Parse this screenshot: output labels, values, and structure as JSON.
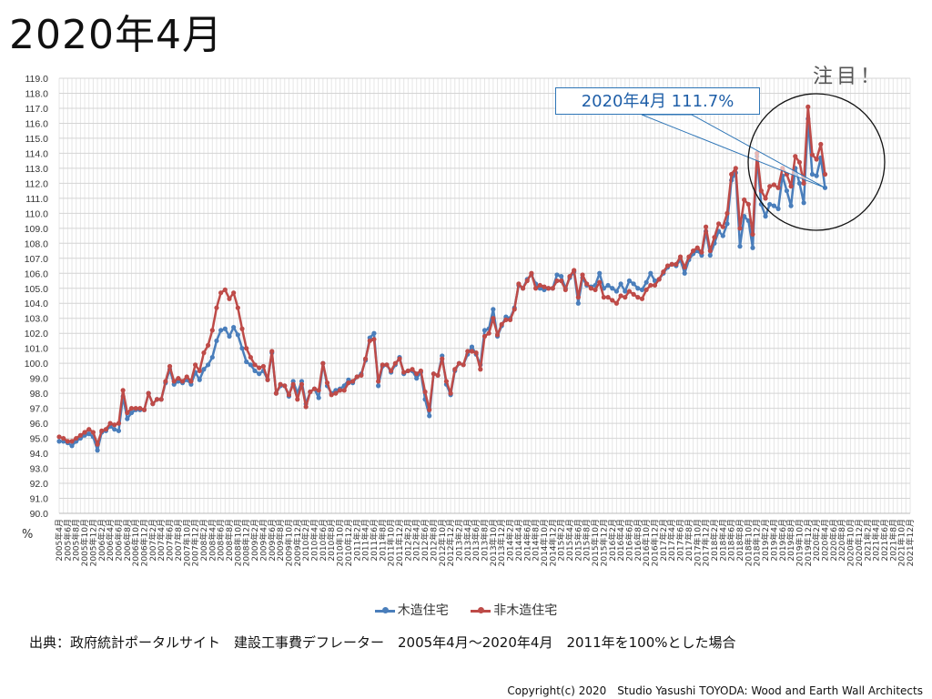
{
  "title": "2020年4月",
  "callout": "2020年4月 111.7%",
  "attention": "注目！",
  "source": "出典：政府統計ポータルサイト　建設工事費デフレーター　2005年4月～2020年4月　2011年を100%とした場合",
  "copyright": "Copyright(c) 2020　Studio Yasushi TOYODA: Wood and Earth Wall Architects",
  "colors": {
    "wood": "#4a7ebb",
    "nonwood": "#be4b48"
  },
  "chart_data": {
    "type": "line",
    "title": "2020年4月",
    "xlabel": "",
    "ylabel": "%",
    "ylim": [
      90.0,
      119.0
    ],
    "ytick_step": 1.0,
    "x_start": "2005年4月",
    "x_end_axis": "2021年12月",
    "x_tick_every_months": 2,
    "grid": true,
    "legend_position": "bottom",
    "series": [
      {
        "name": "木造住宅",
        "color": "#4a7ebb",
        "values": [
          94.8,
          94.8,
          94.7,
          94.5,
          94.8,
          95.0,
          95.2,
          95.3,
          95.1,
          94.2,
          95.4,
          95.5,
          95.8,
          95.6,
          95.5,
          97.8,
          96.3,
          96.7,
          96.9,
          96.9,
          96.9,
          98.0,
          97.3,
          97.6,
          97.6,
          98.7,
          99.6,
          98.6,
          98.8,
          98.7,
          98.9,
          98.6,
          99.4,
          98.9,
          99.6,
          99.9,
          100.4,
          101.5,
          102.2,
          102.3,
          101.8,
          102.4,
          101.9,
          101.0,
          100.1,
          99.9,
          99.5,
          99.3,
          99.5,
          98.9,
          100.7,
          98.0,
          98.5,
          98.5,
          97.8,
          98.8,
          98.0,
          98.8,
          97.3,
          98.1,
          98.3,
          97.7,
          100.0,
          98.5,
          98.0,
          98.2,
          98.3,
          98.5,
          98.9,
          98.7,
          99.1,
          99.3,
          100.2,
          101.7,
          102.0,
          98.5,
          99.8,
          99.9,
          99.4,
          99.9,
          100.4,
          99.3,
          99.5,
          99.5,
          99.0,
          99.4,
          97.6,
          96.5,
          99.3,
          99.2,
          100.5,
          98.6,
          97.9,
          99.5,
          100.0,
          99.9,
          100.6,
          101.1,
          100.6,
          99.9,
          102.2,
          102.3,
          103.6,
          101.8,
          102.5,
          103.1,
          103.0,
          103.7,
          105.2,
          105.0,
          105.6,
          105.9,
          105.3,
          105.0,
          104.9,
          105.0,
          105.0,
          105.9,
          105.8,
          105.0,
          105.7,
          106.1,
          104.0,
          105.7,
          105.2,
          105.1,
          105.2,
          106.0,
          105.0,
          105.2,
          105.0,
          104.8,
          105.3,
          104.8,
          105.5,
          105.3,
          105.0,
          104.9,
          105.4,
          106.0,
          105.5,
          105.6,
          106.0,
          106.4,
          106.6,
          106.5,
          106.9,
          106.0,
          106.9,
          107.3,
          107.5,
          107.2,
          108.8,
          107.2,
          108.0,
          108.8,
          108.5,
          109.3,
          112.2,
          112.7,
          107.8,
          109.8,
          109.5,
          107.7,
          113.8,
          110.6,
          109.8,
          110.6,
          110.5,
          110.3,
          112.5,
          111.5,
          110.5,
          113.0,
          112.0,
          110.7,
          116.3,
          112.6,
          112.5,
          113.7,
          111.7
        ]
      },
      {
        "name": "非木造住宅",
        "color": "#be4b48",
        "values": [
          95.1,
          95.0,
          94.8,
          94.8,
          95.0,
          95.2,
          95.4,
          95.6,
          95.4,
          94.6,
          95.5,
          95.6,
          96.0,
          95.9,
          96.0,
          98.2,
          96.7,
          97.0,
          97.0,
          97.0,
          96.9,
          98.0,
          97.3,
          97.6,
          97.6,
          98.8,
          99.8,
          98.8,
          99.0,
          98.8,
          99.1,
          98.8,
          99.9,
          99.5,
          100.7,
          101.2,
          102.2,
          103.7,
          104.7,
          104.9,
          104.3,
          104.7,
          103.7,
          102.3,
          101.0,
          100.4,
          99.9,
          99.7,
          99.8,
          98.9,
          100.8,
          98.0,
          98.6,
          98.5,
          97.9,
          98.6,
          97.6,
          98.6,
          97.1,
          98.1,
          98.3,
          98.2,
          100.0,
          98.7,
          97.9,
          98.0,
          98.2,
          98.2,
          98.7,
          98.8,
          99.1,
          99.2,
          100.3,
          101.5,
          101.6,
          98.8,
          99.9,
          99.9,
          99.5,
          100.0,
          100.3,
          99.4,
          99.5,
          99.6,
          99.3,
          99.5,
          98.1,
          96.9,
          99.3,
          99.2,
          100.3,
          98.8,
          98.0,
          99.6,
          100.0,
          99.9,
          100.8,
          100.8,
          100.7,
          99.6,
          101.8,
          102.0,
          103.0,
          101.9,
          102.6,
          102.9,
          102.9,
          103.6,
          105.3,
          105.0,
          105.5,
          106.0,
          105.0,
          105.2,
          105.1,
          105.0,
          105.0,
          105.5,
          105.5,
          104.9,
          105.8,
          106.2,
          104.4,
          105.9,
          105.3,
          105.0,
          104.9,
          105.4,
          104.4,
          104.4,
          104.2,
          104.0,
          104.5,
          104.4,
          104.8,
          104.6,
          104.4,
          104.3,
          104.9,
          105.2,
          105.2,
          105.6,
          106.1,
          106.5,
          106.6,
          106.6,
          107.1,
          106.4,
          107.1,
          107.5,
          107.7,
          107.4,
          109.1,
          107.5,
          108.4,
          109.3,
          109.1,
          110.0,
          112.6,
          113.0,
          109.0,
          110.9,
          110.6,
          108.6,
          114.0,
          111.5,
          111.0,
          111.8,
          111.9,
          111.7,
          113.0,
          112.6,
          111.8,
          113.8,
          113.4,
          112.0,
          117.1,
          113.9,
          113.6,
          114.6,
          112.6
        ]
      }
    ],
    "annotation": {
      "label": "2020年4月 111.7%",
      "month": "2020年4月",
      "value": 111.7
    }
  }
}
